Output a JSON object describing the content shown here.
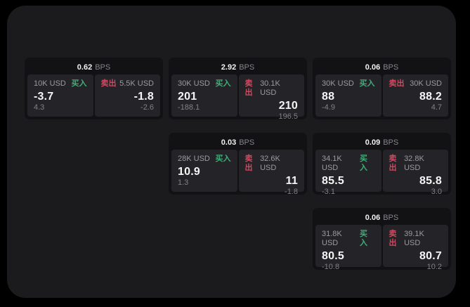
{
  "labels": {
    "bps_unit": "BPS",
    "buy": "买入",
    "sell": "卖出"
  },
  "colors": {
    "buy": "#3fae79",
    "sell": "#cf4a60"
  },
  "cards": [
    {
      "bps": "0.62",
      "buy": {
        "amount": "10K USD",
        "value": "-3.7",
        "delta": "4.3"
      },
      "sell": {
        "amount": "5.5K USD",
        "value": "-1.8",
        "delta": "-2.6"
      }
    },
    {
      "bps": "2.92",
      "buy": {
        "amount": "30K USD",
        "value": "201",
        "delta": "-188.1"
      },
      "sell": {
        "amount": "30.1K USD",
        "value": "210",
        "delta": "196.5"
      }
    },
    {
      "bps": "0.06",
      "buy": {
        "amount": "30K USD",
        "value": "88",
        "delta": "-4.9"
      },
      "sell": {
        "amount": "30K USD",
        "value": "88.2",
        "delta": "4.7"
      }
    },
    {
      "bps": "0.03",
      "buy": {
        "amount": "28K USD",
        "value": "10.9",
        "delta": "1.3"
      },
      "sell": {
        "amount": "32.6K USD",
        "value": "11",
        "delta": "-1.8"
      }
    },
    {
      "bps": "0.09",
      "buy": {
        "amount": "34.1K USD",
        "value": "85.5",
        "delta": "-3.1"
      },
      "sell": {
        "amount": "32.8K USD",
        "value": "85.8",
        "delta": "3.0"
      }
    },
    {
      "bps": "0.06",
      "buy": {
        "amount": "31.8K USD",
        "value": "80.5",
        "delta": "-10.8"
      },
      "sell": {
        "amount": "39.1K USD",
        "value": "80.7",
        "delta": "10.2"
      }
    }
  ]
}
